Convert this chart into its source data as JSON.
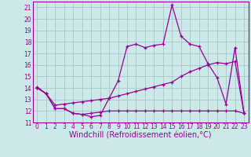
{
  "xlabel": "Windchill (Refroidissement éolien,°C)",
  "background_color": "#cce8e8",
  "grid_color": "#aacccc",
  "line_color": "#990099",
  "xlim": [
    -0.5,
    23.5
  ],
  "ylim": [
    11,
    21.5
  ],
  "xticks": [
    0,
    1,
    2,
    3,
    4,
    5,
    6,
    7,
    8,
    9,
    10,
    11,
    12,
    13,
    14,
    15,
    16,
    17,
    18,
    19,
    20,
    21,
    22,
    23
  ],
  "yticks": [
    11,
    12,
    13,
    14,
    15,
    16,
    17,
    18,
    19,
    20,
    21
  ],
  "line1_x": [
    0,
    1,
    2,
    3,
    4,
    5,
    6,
    7,
    8,
    9,
    10,
    11,
    12,
    13,
    14,
    15,
    16,
    17,
    18,
    19,
    20,
    21,
    22,
    23
  ],
  "line1_y": [
    14.1,
    13.5,
    12.2,
    12.2,
    11.8,
    11.7,
    11.5,
    11.6,
    13.1,
    14.6,
    17.6,
    17.8,
    17.5,
    17.7,
    17.8,
    21.2,
    18.5,
    17.8,
    17.6,
    16.1,
    14.9,
    12.6,
    17.5,
    11.8
  ],
  "line2_x": [
    0,
    1,
    2,
    3,
    4,
    5,
    6,
    7,
    8,
    9,
    10,
    11,
    12,
    13,
    14,
    15,
    16,
    17,
    18,
    19,
    20,
    21,
    22,
    23
  ],
  "line2_y": [
    14.0,
    13.5,
    12.2,
    12.2,
    11.8,
    11.7,
    11.8,
    11.9,
    12.0,
    12.0,
    12.0,
    12.0,
    12.0,
    12.0,
    12.0,
    12.0,
    12.0,
    12.0,
    12.0,
    12.0,
    12.0,
    12.0,
    12.0,
    11.8
  ],
  "line3_x": [
    0,
    1,
    2,
    3,
    4,
    5,
    6,
    7,
    8,
    9,
    10,
    11,
    12,
    13,
    14,
    15,
    16,
    17,
    18,
    19,
    20,
    21,
    22,
    23
  ],
  "line3_y": [
    14.0,
    13.5,
    12.5,
    12.6,
    12.7,
    12.8,
    12.9,
    13.0,
    13.1,
    13.3,
    13.5,
    13.7,
    13.9,
    14.1,
    14.3,
    14.5,
    15.0,
    15.4,
    15.7,
    16.0,
    16.2,
    16.1,
    16.3,
    11.8
  ],
  "tick_fontsize": 5.5,
  "xlabel_fontsize": 7.0
}
